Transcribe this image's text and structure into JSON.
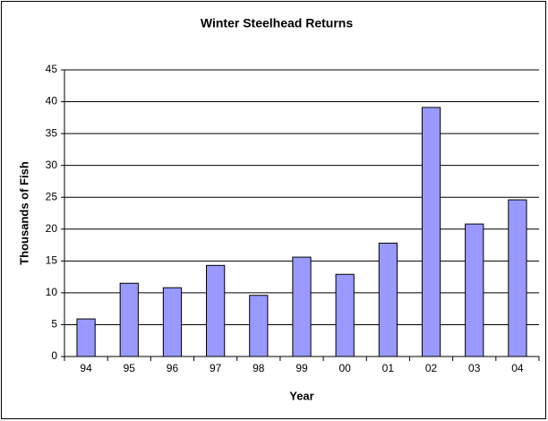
{
  "chart_data": {
    "type": "bar",
    "title": "Winter Steelhead Returns",
    "x_label": "Year",
    "y_label": "Thousands of Fish",
    "categories": [
      "94",
      "95",
      "96",
      "97",
      "98",
      "99",
      "00",
      "01",
      "02",
      "03",
      "04"
    ],
    "values": [
      5.9,
      11.5,
      10.8,
      14.3,
      9.6,
      15.6,
      12.9,
      17.8,
      39.1,
      20.8,
      24.6
    ],
    "color": "#9999ff",
    "ylim": [
      0,
      45
    ],
    "yticks": [
      0,
      5,
      10,
      15,
      20,
      25,
      30,
      35,
      40,
      45
    ],
    "grid": true
  }
}
